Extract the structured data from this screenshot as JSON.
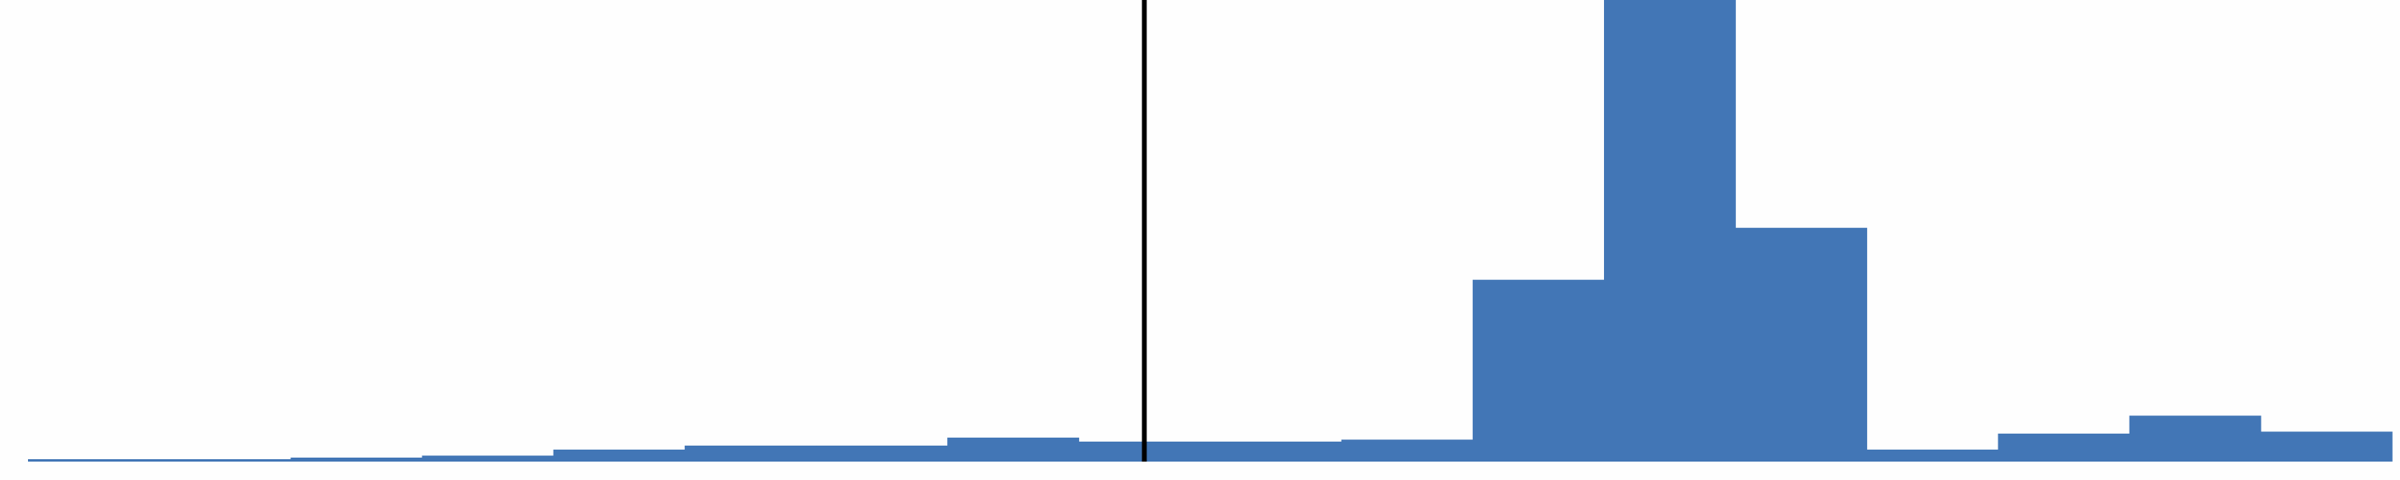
{
  "chart_data": {
    "type": "bar",
    "title": "",
    "xlabel": "",
    "ylabel": "",
    "grid": false,
    "legend": "none",
    "bar_color": "#4276b6",
    "marker_color": "#000000",
    "values": [
      1,
      1,
      2,
      3,
      6,
      8,
      8,
      12,
      10,
      10,
      11,
      91,
      231,
      117,
      6,
      14,
      23,
      15
    ],
    "ylim": [
      0,
      231
    ],
    "vertical_marker_after_bin": 8.5
  }
}
